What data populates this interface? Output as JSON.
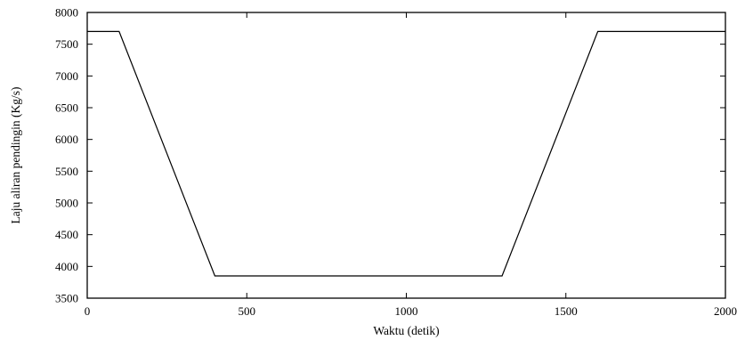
{
  "chart_data": {
    "type": "line",
    "title": "",
    "xlabel": "Waktu (detik)",
    "ylabel": "Laju aliran pendingin (Kg/s)",
    "xlim": [
      0,
      2000
    ],
    "ylim": [
      3500,
      8000
    ],
    "xticks": [
      0,
      500,
      1000,
      1500,
      2000
    ],
    "yticks": [
      3500,
      4000,
      4500,
      5000,
      5500,
      6000,
      6500,
      7000,
      7500,
      8000
    ],
    "grid": false,
    "legend": "none",
    "series": [
      {
        "x": [
          0,
          100,
          400,
          1300,
          1600,
          2000
        ],
        "y": [
          7700,
          7700,
          3850,
          3850,
          7700,
          7700
        ]
      }
    ],
    "line_color": "#000000"
  }
}
